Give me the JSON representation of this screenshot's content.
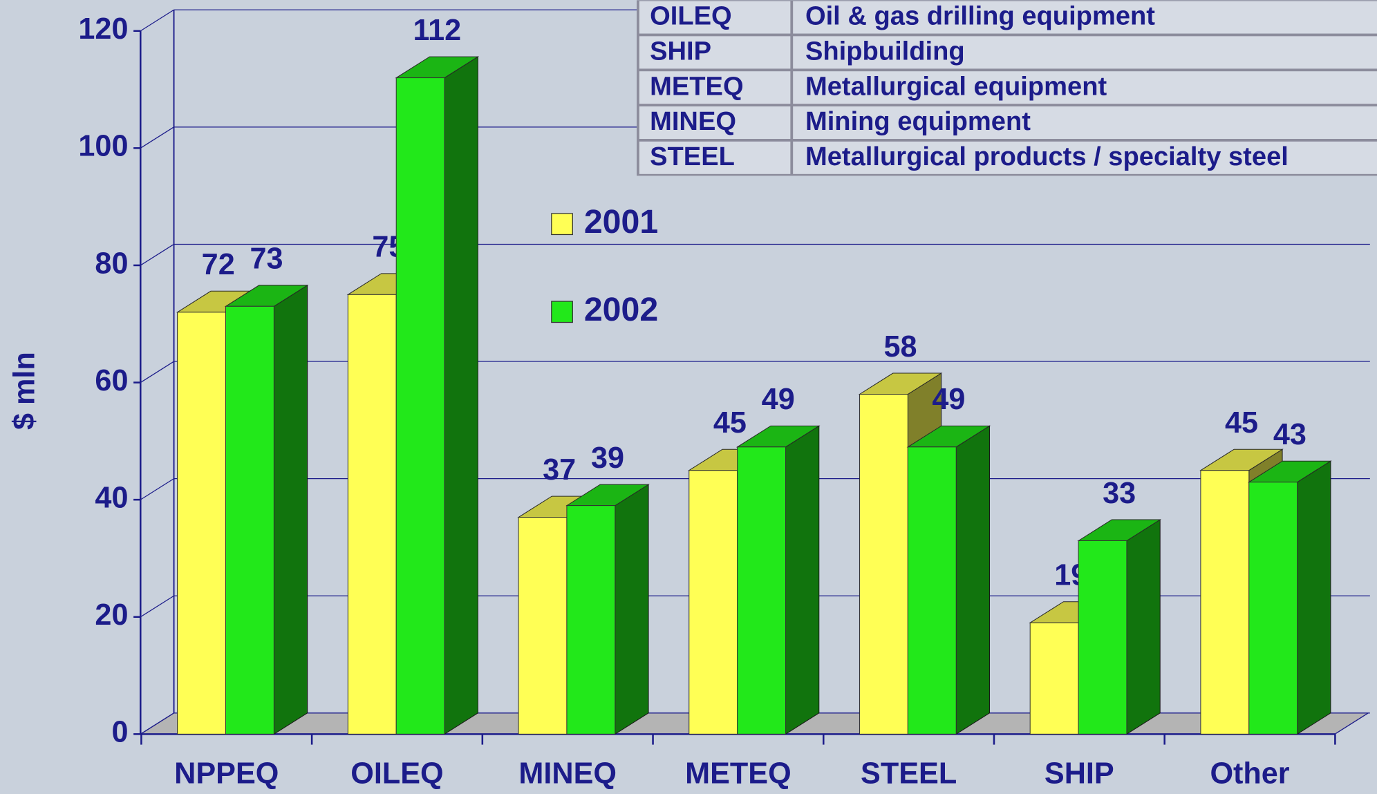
{
  "chart_data": {
    "type": "bar3d",
    "y_label": "$ mln",
    "categories": [
      "NPPEQ",
      "OILEQ",
      "MINEQ",
      "METEQ",
      "STEEL",
      "SHIP",
      "Other"
    ],
    "series": [
      {
        "name": "2001",
        "color": "#ffff55",
        "values": [
          72,
          75,
          37,
          45,
          58,
          19,
          45
        ]
      },
      {
        "name": "2002",
        "color": "#22e81a",
        "values": [
          73,
          112,
          39,
          49,
          49,
          33,
          43
        ]
      }
    ],
    "ylim": [
      0,
      120
    ],
    "yticks": [
      0,
      20,
      40,
      60,
      80,
      100,
      120
    ],
    "grid": true,
    "glossary": [
      {
        "code": "OILEQ",
        "description": "Oil & gas drilling equipment"
      },
      {
        "code": "SHIP",
        "description": "Shipbuilding"
      },
      {
        "code": "METEQ",
        "description": "Metallurgical equipment"
      },
      {
        "code": "MINEQ",
        "description": "Mining equipment"
      },
      {
        "code": "STEEL",
        "description": "Metallurgical products / specialty steel"
      }
    ]
  }
}
